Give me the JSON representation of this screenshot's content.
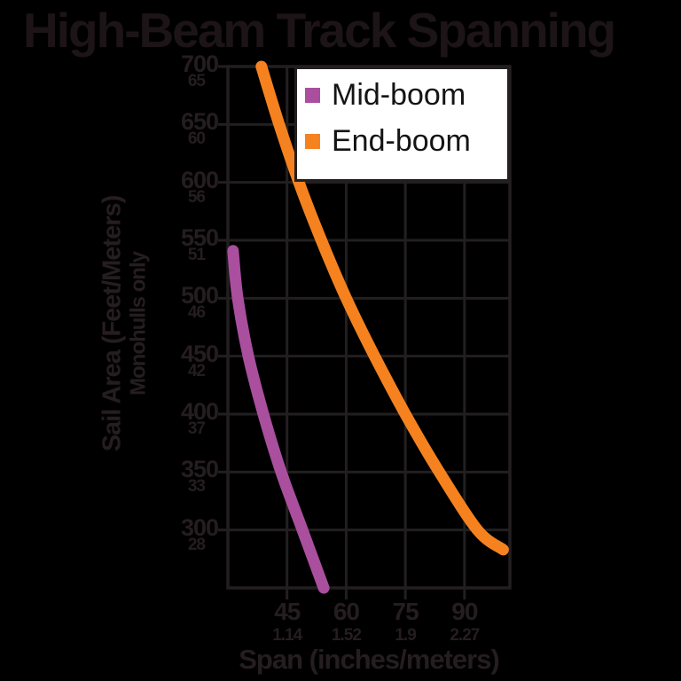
{
  "title": "High-Beam Track Spanning",
  "legend": {
    "items": [
      {
        "label": "Mid-boom",
        "color": "#a94f9e"
      },
      {
        "label": "End-boom",
        "color": "#f5821f"
      }
    ]
  },
  "axes": {
    "x_label": "Span (inches/meters)",
    "y_label_line1": "Sail Area (Feet/Meters)",
    "y_label_line2": "Monohulls only",
    "x_ticks": [
      {
        "value": 45,
        "primary": "45",
        "secondary": "1.14"
      },
      {
        "value": 60,
        "primary": "60",
        "secondary": "1.52"
      },
      {
        "value": 75,
        "primary": "75",
        "secondary": "1.9"
      },
      {
        "value": 90,
        "primary": "90",
        "secondary": "2.27"
      }
    ],
    "y_ticks": [
      {
        "value": 700,
        "primary": "700",
        "secondary": "65"
      },
      {
        "value": 650,
        "primary": "650",
        "secondary": "60"
      },
      {
        "value": 600,
        "primary": "600",
        "secondary": "56"
      },
      {
        "value": 550,
        "primary": "550",
        "secondary": "51"
      },
      {
        "value": 500,
        "primary": "500",
        "secondary": "46"
      },
      {
        "value": 450,
        "primary": "450",
        "secondary": "42"
      },
      {
        "value": 400,
        "primary": "400",
        "secondary": "37"
      },
      {
        "value": 350,
        "primary": "350",
        "secondary": "33"
      },
      {
        "value": 300,
        "primary": "300",
        "secondary": "28"
      }
    ]
  },
  "chart_data": {
    "type": "line",
    "title": "High-Beam Track Spanning",
    "xlabel": "Span (inches/meters)",
    "ylabel": "Sail Area (Feet/Meters) — Monohulls only",
    "xlim": [
      30,
      101.5
    ],
    "ylim": [
      250,
      700
    ],
    "grid": true,
    "legend_position": "top-right",
    "x_tick_values": [
      45,
      60,
      75,
      90
    ],
    "y_tick_values": [
      300,
      350,
      400,
      450,
      500,
      550,
      600,
      650,
      700
    ],
    "series": [
      {
        "name": "Mid-boom",
        "color": "#a94f9e",
        "points": [
          [
            31.3,
            541
          ],
          [
            32.5,
            500
          ],
          [
            35.2,
            450
          ],
          [
            39,
            400
          ],
          [
            43.5,
            350
          ],
          [
            48.9,
            300
          ],
          [
            54.3,
            250
          ]
        ]
      },
      {
        "name": "End-boom",
        "color": "#f5821f",
        "points": [
          [
            38.5,
            700
          ],
          [
            43,
            650
          ],
          [
            48,
            600
          ],
          [
            53.7,
            550
          ],
          [
            60,
            500
          ],
          [
            67.2,
            450
          ],
          [
            75,
            400
          ],
          [
            83.6,
            350
          ],
          [
            93.3,
            300
          ],
          [
            99.8,
            283
          ]
        ]
      }
    ]
  },
  "colors": {
    "background": "#000000",
    "grid": "#231f20",
    "axis_text": "#251d20",
    "legend_background": "#ffffff",
    "mid_boom": "#a94f9e",
    "end_boom": "#f5821f"
  }
}
